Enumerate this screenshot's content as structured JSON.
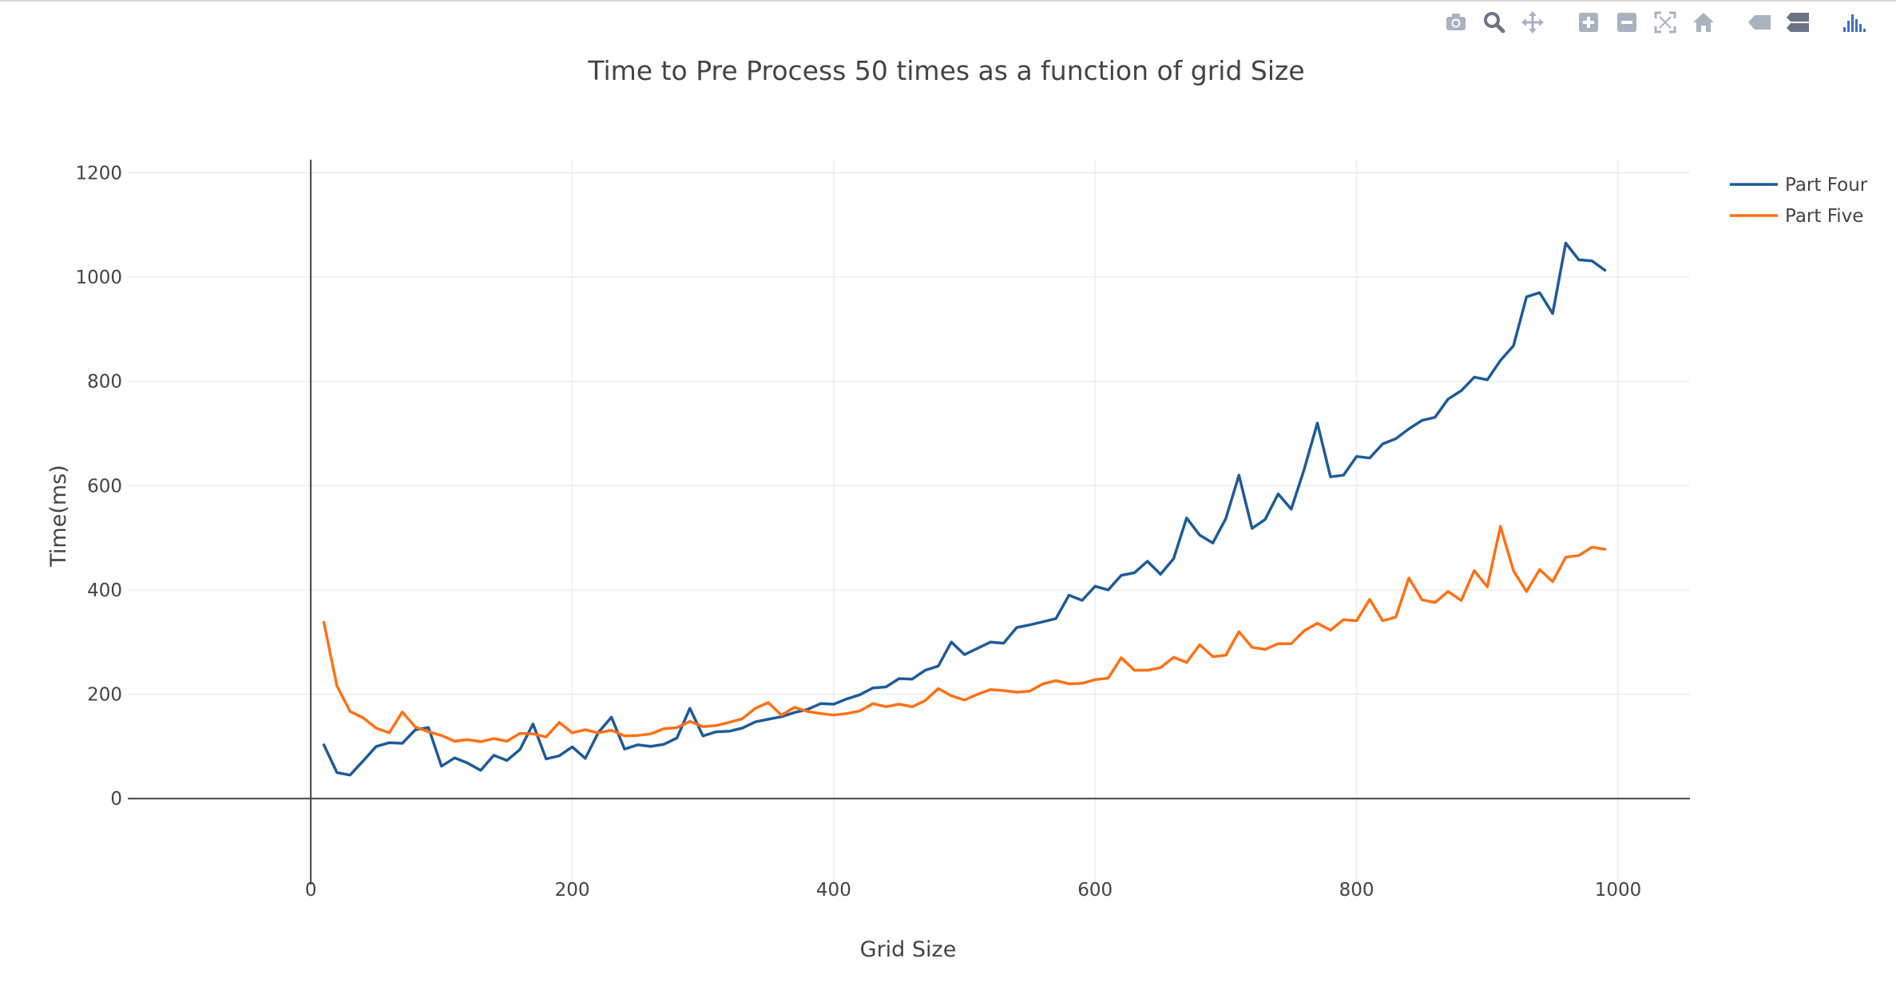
{
  "modebar": [
    {
      "icon": "camera-icon",
      "title": "Download plot as a png"
    },
    {
      "icon": "zoom-icon",
      "title": "Zoom"
    },
    {
      "icon": "pan-icon",
      "title": "Pan"
    },
    {
      "icon": "zoom-in-icon",
      "title": "Zoom in"
    },
    {
      "icon": "zoom-out-icon",
      "title": "Zoom out"
    },
    {
      "icon": "autoscale-icon",
      "title": "Autoscale"
    },
    {
      "icon": "home-icon",
      "title": "Reset axes"
    },
    {
      "icon": "hover-closest-icon",
      "title": "Show closest data on hover"
    },
    {
      "icon": "hover-compare-icon",
      "title": "Compare data on hover"
    },
    {
      "icon": "plotly-logo-icon",
      "title": "Produced with Plotly"
    }
  ],
  "chart_data": {
    "type": "line",
    "title": "Time to Pre Process 50 times as a function of grid Size",
    "xlabel": "Grid Size",
    "ylabel": "Time(ms)",
    "xlim": [
      -140,
      1055
    ],
    "ylim": [
      -165,
      1225
    ],
    "xticks": [
      0,
      200,
      400,
      600,
      800,
      1000
    ],
    "yticks": [
      0,
      200,
      400,
      600,
      800,
      1000,
      1200
    ],
    "grid": true,
    "legend_position": "top-right",
    "x": [
      10,
      20,
      30,
      40,
      50,
      60,
      70,
      80,
      90,
      100,
      110,
      120,
      130,
      140,
      150,
      160,
      170,
      180,
      190,
      200,
      210,
      220,
      230,
      240,
      250,
      260,
      270,
      280,
      290,
      300,
      310,
      320,
      330,
      340,
      350,
      360,
      370,
      380,
      390,
      400,
      410,
      420,
      430,
      440,
      450,
      460,
      470,
      480,
      490,
      500,
      510,
      520,
      530,
      540,
      550,
      560,
      570,
      580,
      590,
      600,
      610,
      620,
      630,
      640,
      650,
      660,
      670,
      680,
      690,
      700,
      710,
      720,
      730,
      740,
      750,
      760,
      770,
      780,
      790,
      800,
      810,
      820,
      830,
      840,
      850,
      860,
      870,
      880,
      890,
      900,
      910,
      920,
      930,
      940,
      950,
      960,
      970,
      980,
      990
    ],
    "series": [
      {
        "name": "Part Four",
        "color": "#1f5b99",
        "values": [
          103,
          50,
          45,
          72,
          100,
          107,
          106,
          132,
          136,
          62,
          78,
          68,
          54,
          83,
          73,
          94,
          143,
          76,
          82,
          99,
          77,
          127,
          156,
          95,
          103,
          100,
          104,
          116,
          173,
          120,
          128,
          129,
          135,
          147,
          152,
          157,
          165,
          171,
          182,
          181,
          191,
          199,
          212,
          214,
          230,
          229,
          246,
          254,
          300,
          276,
          288,
          300,
          298,
          328,
          333,
          339,
          345,
          390,
          380,
          407,
          400,
          428,
          433,
          455,
          430,
          460,
          538,
          505,
          490,
          537,
          620,
          518,
          535,
          584,
          555,
          632,
          720,
          617,
          620,
          656,
          653,
          680,
          690,
          709,
          725,
          731,
          766,
          782,
          808,
          803,
          840,
          868,
          962,
          970,
          930,
          1065,
          1033,
          1031,
          1013
        ]
      },
      {
        "name": "Part Five",
        "color": "#ff7115",
        "values": [
          338,
          216,
          167,
          155,
          135,
          126,
          166,
          137,
          128,
          121,
          110,
          113,
          109,
          115,
          110,
          125,
          124,
          118,
          146,
          126,
          132,
          126,
          131,
          120,
          121,
          124,
          134,
          136,
          148,
          138,
          140,
          146,
          153,
          173,
          184,
          160,
          175,
          167,
          163,
          160,
          163,
          168,
          182,
          176,
          181,
          176,
          188,
          211,
          197,
          189,
          200,
          209,
          207,
          204,
          206,
          220,
          226,
          220,
          221,
          228,
          231,
          270,
          246,
          246,
          251,
          271,
          261,
          295,
          272,
          275,
          320,
          290,
          286,
          297,
          297,
          322,
          336,
          323,
          343,
          341,
          382,
          341,
          348,
          423,
          381,
          376,
          397,
          380,
          437,
          406,
          522,
          437,
          397,
          439,
          416,
          463,
          466,
          482,
          478
        ]
      }
    ]
  }
}
